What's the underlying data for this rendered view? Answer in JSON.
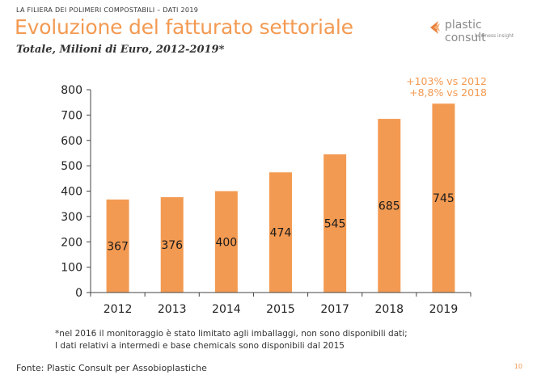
{
  "header": {
    "kicker": "LA FILIERA DEI POLIMERI COMPOSTABILI – DATI 2019",
    "title": "Evoluzione del fatturato settoriale",
    "subtitle": "Totale, Milioni di Euro, 2012-2019*"
  },
  "logo": {
    "name": "plastic consult",
    "tagline": "business insight",
    "icon": "chevron-mark-icon"
  },
  "colors": {
    "accent": "#F39A52",
    "bar": "#F39A52",
    "text": "#222222"
  },
  "annotations": [
    "+103% vs 2012",
    "+8,8% vs 2018"
  ],
  "chart_data": {
    "type": "bar",
    "title": "Evoluzione del fatturato settoriale",
    "subtitle": "Totale, Milioni di Euro, 2012-2019*",
    "categories": [
      "2012",
      "2013",
      "2014",
      "2015",
      "2017",
      "2018",
      "2019"
    ],
    "values": [
      367,
      376,
      400,
      474,
      545,
      685,
      745
    ],
    "data_labels": [
      "367",
      "376",
      "400",
      "474",
      "545",
      "685",
      "745"
    ],
    "ylim": [
      0,
      800
    ],
    "yticks": [
      0,
      100,
      200,
      300,
      400,
      500,
      600,
      700,
      800
    ],
    "xlabel": "",
    "ylabel": "",
    "grid": false,
    "legend": "none"
  },
  "footer": {
    "note_line1": "*nel 2016 il monitoraggio è stato limitato agli imballaggi, non sono disponibili dati;",
    "note_line2": "I dati relativi a intermedi e base chemicals sono disponibili dal 2015",
    "source": "Fonte: Plastic Consult per Assobioplastiche",
    "page_number": "10"
  }
}
